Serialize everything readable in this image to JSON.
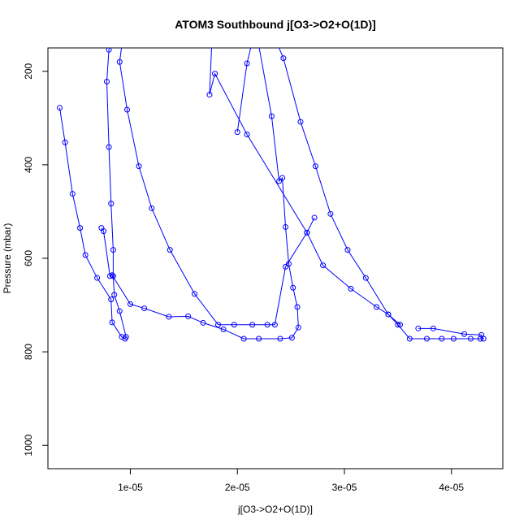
{
  "chart_data": {
    "type": "line",
    "title": "ATOM3 Southbound j[O3->O2+O(1D)]",
    "xlabel": "j[O3->O2+O(1D)]",
    "ylabel": "Pressure (mbar)",
    "xlim": [
      2.3e-06,
      4.48e-05
    ],
    "ylim": [
      1050,
      150
    ],
    "x_ticks": [
      1e-05,
      2e-05,
      3e-05,
      4e-05
    ],
    "x_tick_labels": [
      "1e-05",
      "2e-05",
      "3e-05",
      "4e-05"
    ],
    "y_ticks": [
      200,
      400,
      600,
      800,
      1000
    ],
    "y_tick_labels": [
      "200",
      "400",
      "600",
      "800",
      "1000"
    ],
    "grid": false,
    "legend": "none",
    "colors": {
      "series": "#0000ff",
      "axes": "#000000",
      "background": "#ffffff"
    },
    "series": [
      {
        "points": [
          [
            3.4e-06,
            278
          ],
          [
            3.9e-06,
            352
          ],
          [
            4.6e-06,
            462
          ],
          [
            5.3e-06,
            535
          ],
          [
            5.8e-06,
            593
          ],
          [
            6.9e-06,
            642
          ],
          [
            8.2e-06,
            688
          ],
          [
            8.3e-06,
            737
          ],
          [
            9.2e-06,
            768
          ],
          [
            9.5e-06,
            772
          ],
          [
            9.6e-06,
            768
          ],
          [
            9e-06,
            713
          ],
          [
            8.5e-06,
            678
          ],
          [
            8.4e-06,
            638
          ],
          [
            8.4e-06,
            582
          ],
          [
            8.2e-06,
            483
          ],
          [
            8e-06,
            362
          ],
          [
            7.8e-06,
            222
          ],
          [
            8e-06,
            154
          ],
          [
            8.05e-06,
            145
          ]
        ]
      },
      {
        "points": [
          [
            9.2e-06,
            145
          ],
          [
            9e-06,
            180
          ],
          [
            9.7e-06,
            282
          ],
          [
            1.08e-05,
            403
          ],
          [
            1.2e-05,
            493
          ],
          [
            1.37e-05,
            582
          ],
          [
            1.6e-05,
            676
          ],
          [
            1.82e-05,
            742
          ],
          [
            1.97e-05,
            742
          ],
          [
            2.14e-05,
            742
          ],
          [
            2.28e-05,
            742
          ],
          [
            2.35e-05,
            742
          ],
          [
            2.45e-05,
            618
          ],
          [
            2.65e-05,
            545
          ],
          [
            2.72e-05,
            513
          ]
        ]
      },
      {
        "points": [
          [
            7.3e-06,
            535
          ],
          [
            7.5e-06,
            542
          ],
          [
            8.1e-06,
            638
          ],
          [
            8.3e-06,
            636
          ],
          [
            1e-05,
            698
          ],
          [
            1.13e-05,
            707
          ],
          [
            1.36e-05,
            725
          ],
          [
            1.54e-05,
            724
          ],
          [
            1.68e-05,
            738
          ],
          [
            1.87e-05,
            752
          ],
          [
            2.06e-05,
            772
          ],
          [
            2.2e-05,
            772
          ],
          [
            2.4e-05,
            772
          ],
          [
            2.51e-05,
            770
          ],
          [
            2.57e-05,
            748
          ],
          [
            2.56e-05,
            704
          ],
          [
            2.52e-05,
            663
          ],
          [
            2.48e-05,
            612
          ],
          [
            2.45e-05,
            533
          ],
          [
            2.42e-05,
            428
          ],
          [
            2.39e-05,
            435
          ],
          [
            2.32e-05,
            296
          ],
          [
            2.2e-05,
            145
          ]
        ]
      },
      {
        "points": [
          [
            1.76e-05,
            145
          ],
          [
            1.74e-05,
            250
          ],
          [
            1.79e-05,
            205
          ],
          [
            2.09e-05,
            335
          ],
          [
            2.65e-05,
            545
          ],
          [
            2.8e-05,
            615
          ],
          [
            3.06e-05,
            665
          ],
          [
            3.3e-05,
            704
          ],
          [
            3.41e-05,
            720
          ],
          [
            3.5e-05,
            742
          ],
          [
            3.61e-05,
            772
          ],
          [
            3.77e-05,
            772
          ],
          [
            3.91e-05,
            772
          ],
          [
            4.02e-05,
            772
          ],
          [
            4.18e-05,
            772
          ],
          [
            4.27e-05,
            772
          ],
          [
            4.3e-05,
            772
          ],
          [
            4.28e-05,
            764
          ],
          [
            4.12e-05,
            762
          ],
          [
            3.83e-05,
            750
          ],
          [
            3.69e-05,
            750
          ]
        ]
      },
      {
        "points": [
          [
            3.52e-05,
            742
          ],
          [
            3.41e-05,
            720
          ],
          [
            3.2e-05,
            642
          ],
          [
            3.03e-05,
            582
          ],
          [
            2.87e-05,
            505
          ],
          [
            2.73e-05,
            403
          ],
          [
            2.59e-05,
            308
          ],
          [
            2.43e-05,
            172
          ],
          [
            2.38e-05,
            145
          ]
        ]
      },
      {
        "points": [
          [
            2.13e-05,
            145
          ],
          [
            2.09e-05,
            183
          ],
          [
            2e-05,
            330
          ]
        ]
      }
    ]
  }
}
